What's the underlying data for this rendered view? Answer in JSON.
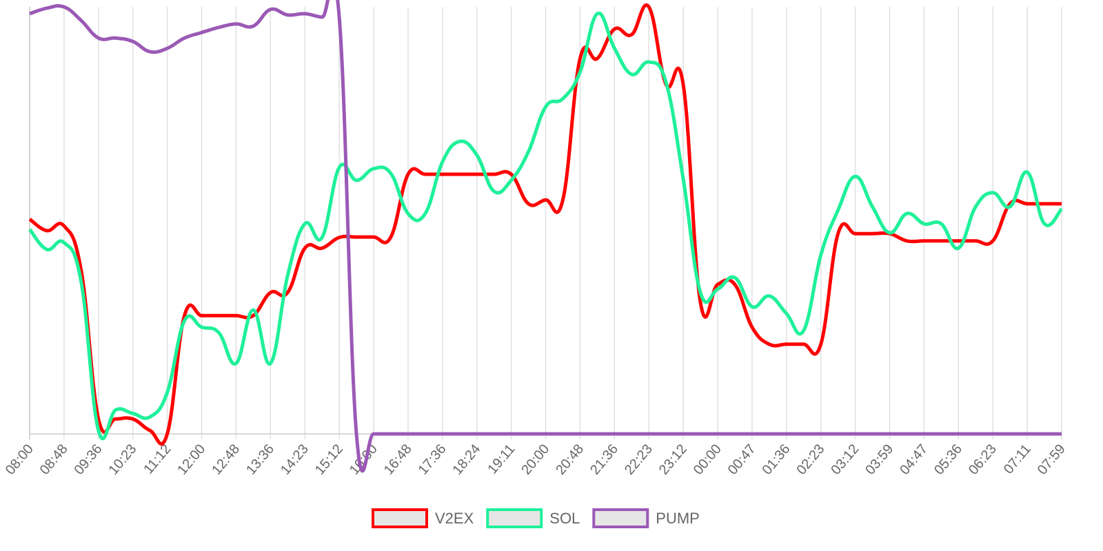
{
  "chart_data": {
    "type": "line",
    "categories": [
      "08:00",
      null,
      "08:48",
      null,
      "09:36",
      null,
      "10:23",
      null,
      "11:12",
      null,
      "12:00",
      null,
      "12:48",
      null,
      "13:36",
      null,
      "14:23",
      null,
      "15:12",
      null,
      "16:00",
      null,
      "16:48",
      null,
      "17:36",
      null,
      "18:24",
      null,
      "19:11",
      null,
      "20:00",
      null,
      "20:48",
      null,
      "21:36",
      null,
      "22:23",
      null,
      "23:12",
      null,
      "00:00",
      null,
      "00:47",
      null,
      "01:36",
      null,
      "02:23",
      null,
      "03:12",
      null,
      "03:59",
      null,
      "04:47",
      null,
      "05:36",
      null,
      "06:23",
      null,
      "07:11",
      null,
      "07:59"
    ],
    "series": [
      {
        "name": "V2EX",
        "color": "#ff0000",
        "values": [
          50.3,
          47.6,
          48.7,
          38.2,
          3.5,
          3.5,
          3.5,
          0.8,
          0,
          27.7,
          27.7,
          27.7,
          27.7,
          27.7,
          33.1,
          33.1,
          43.5,
          43.5,
          46,
          46.1,
          46.1,
          46.1,
          60.8,
          60.8,
          60.8,
          60.8,
          60.8,
          60.8,
          60.8,
          53.9,
          54.8,
          54.8,
          87.9,
          87.9,
          94.8,
          93.5,
          100,
          81.8,
          81.8,
          30.8,
          35,
          35,
          25,
          21,
          21,
          21,
          21,
          46.9,
          46.9,
          46.9,
          46.9,
          45.2,
          45.2,
          45.2,
          45.2,
          45.2,
          45.2,
          53.9,
          53.9,
          53.9,
          53.9
        ]
      },
      {
        "name": "SOL",
        "color": "#1ff09a",
        "values": [
          47.9,
          43.2,
          44.8,
          35.5,
          0.8,
          5.6,
          4.8,
          4,
          9.7,
          26.5,
          25,
          23.7,
          16.5,
          29,
          16.5,
          37.1,
          49.2,
          46,
          62.4,
          59.4,
          62.1,
          61,
          51.6,
          51.6,
          63.7,
          68.5,
          65.3,
          56.8,
          59.4,
          66.1,
          76.6,
          78.5,
          84.7,
          98.4,
          90.3,
          84.2,
          87.1,
          82.3,
          59.7,
          33.1,
          33.9,
          36.6,
          29.8,
          32.3,
          28.2,
          24.2,
          41.9,
          52.4,
          60.3,
          53.2,
          47.1,
          51.6,
          49.2,
          49.2,
          43.5,
          53.2,
          56.5,
          53.2,
          61.3,
          49.2,
          52.7
        ]
      },
      {
        "name": "PUMP",
        "color": "#9b59b6",
        "values": [
          98.4,
          99.7,
          100,
          96.8,
          92.7,
          92.7,
          91.9,
          89.5,
          90.3,
          92.7,
          94,
          95.2,
          96,
          95.5,
          99.4,
          98.1,
          98.4,
          97.6,
          97.6,
          0,
          0,
          0,
          0,
          0,
          0,
          0,
          0,
          0,
          0,
          0,
          0,
          0,
          0,
          0,
          0,
          0,
          0,
          0,
          0,
          0,
          0,
          0,
          0,
          0,
          0,
          0,
          0,
          0,
          0,
          0,
          0,
          0,
          0,
          0,
          0,
          0,
          0,
          0,
          0,
          0,
          0
        ]
      }
    ]
  }
}
